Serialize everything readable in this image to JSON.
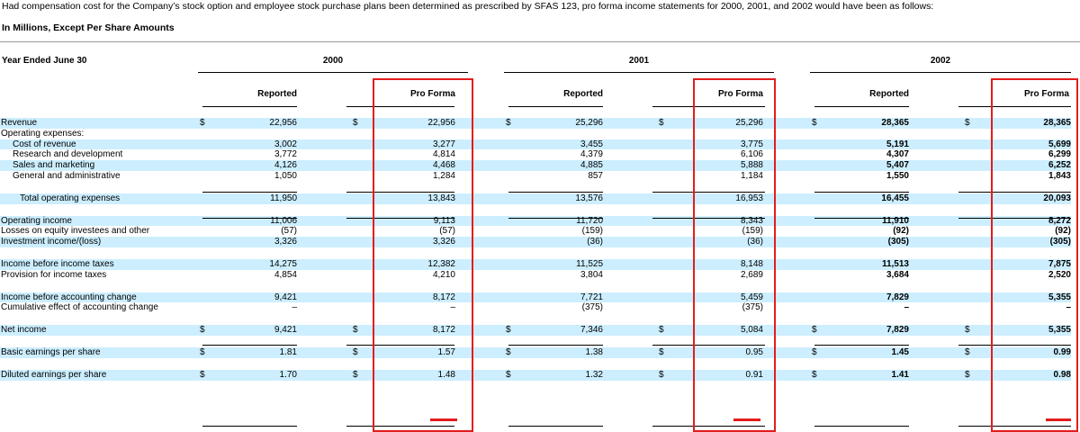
{
  "intro": "Had compensation cost for the Company’s stock option and employee stock purchase plans been determined as prescribed by SFAS 123, pro forma income statements for 2000, 2001, and 2002 would have been as follows:",
  "units": "In Millions, Except Per Share Amounts",
  "header": {
    "period_label": "Year Ended June 30",
    "years": [
      "2000",
      "2001",
      "2002"
    ],
    "reported": "Reported",
    "pro_forma": "Pro Forma",
    "currency": "$"
  },
  "rows": [
    {
      "label": "Revenue",
      "vals": [
        "22,956",
        "22,956",
        "25,296",
        "25,296",
        "28,365",
        "28,365"
      ]
    },
    {
      "label": "Operating expenses:",
      "vals": [
        "",
        "",
        "",
        "",
        "",
        ""
      ]
    },
    {
      "label": "Cost of revenue",
      "vals": [
        "3,002",
        "3,277",
        "3,455",
        "3,775",
        "5,191",
        "5,699"
      ]
    },
    {
      "label": "Research and development",
      "vals": [
        "3,772",
        "4,814",
        "4,379",
        "6,106",
        "4,307",
        "6,299"
      ]
    },
    {
      "label": "Sales and marketing",
      "vals": [
        "4,126",
        "4,468",
        "4,885",
        "5,888",
        "5,407",
        "6,252"
      ]
    },
    {
      "label": "General and administrative",
      "vals": [
        "1,050",
        "1,284",
        "857",
        "1,184",
        "1,550",
        "1,843"
      ]
    },
    {
      "label": "Total operating expenses",
      "vals": [
        "11,950",
        "13,843",
        "13,576",
        "16,953",
        "16,455",
        "20,093"
      ]
    },
    {
      "label": "Operating income",
      "vals": [
        "11,006",
        "9,113",
        "11,720",
        "8,343",
        "11,910",
        "8,272"
      ]
    },
    {
      "label": "Losses on equity investees and other",
      "vals": [
        "(57)",
        "(57)",
        "(159)",
        "(159)",
        "(92)",
        "(92)"
      ]
    },
    {
      "label": "Investment income/(loss)",
      "vals": [
        "3,326",
        "3,326",
        "(36)",
        "(36)",
        "(305)",
        "(305)"
      ]
    },
    {
      "label": "Income before income taxes",
      "vals": [
        "14,275",
        "12,382",
        "11,525",
        "8,148",
        "11,513",
        "7,875"
      ]
    },
    {
      "label": "Provision for income taxes",
      "vals": [
        "4,854",
        "4,210",
        "3,804",
        "2,689",
        "3,684",
        "2,520"
      ]
    },
    {
      "label": "Income before accounting change",
      "vals": [
        "9,421",
        "8,172",
        "7,721",
        "5,459",
        "7,829",
        "5,355"
      ]
    },
    {
      "label": "Cumulative effect of accounting change",
      "vals": [
        "–",
        "–",
        "(375)",
        "(375)",
        "–",
        "–"
      ]
    },
    {
      "label": "Net income",
      "vals": [
        "9,421",
        "8,172",
        "7,346",
        "5,084",
        "7,829",
        "5,355"
      ]
    },
    {
      "label": "Basic earnings per share",
      "vals": [
        "1.81",
        "1.57",
        "1.38",
        "0.95",
        "1.45",
        "0.99"
      ]
    },
    {
      "label": "Diluted earnings per share",
      "vals": [
        "1.70",
        "1.48",
        "1.32",
        "0.91",
        "1.41",
        "0.98"
      ]
    }
  ],
  "colors": {
    "highlight": "#cceeff",
    "annotation": "#e31d1d"
  }
}
